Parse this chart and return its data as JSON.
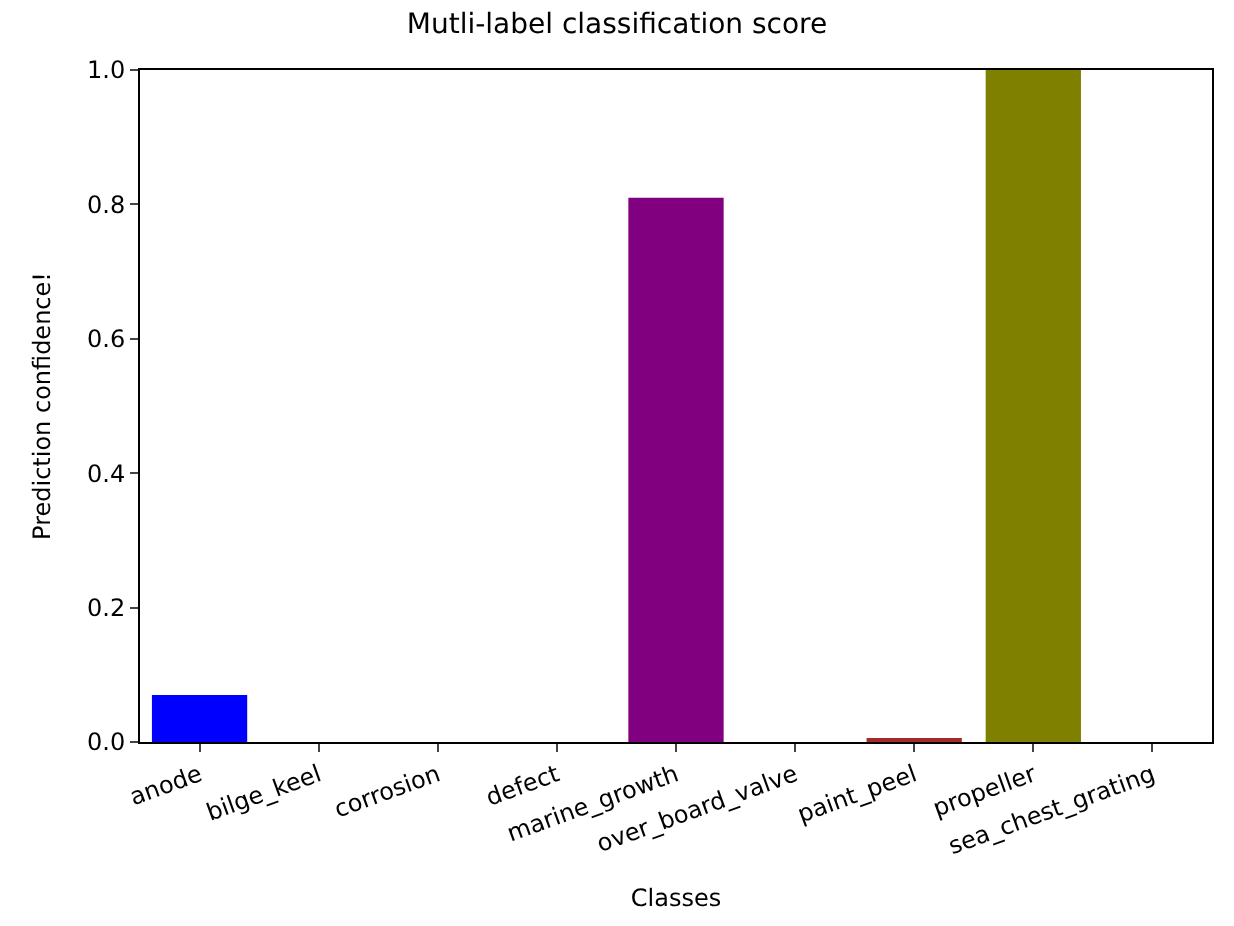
{
  "chart_data": {
    "type": "bar",
    "title": "Mutli-label classification score",
    "xlabel": "Classes",
    "ylabel": "Prediction confidence!",
    "categories": [
      "anode",
      "bilge_keel",
      "corrosion",
      "defect",
      "marine_growth",
      "over_board_valve",
      "paint_peel",
      "propeller",
      "sea_chest_grating"
    ],
    "values": [
      0.07,
      0,
      0,
      0,
      0.81,
      0,
      0.003,
      1.0,
      0
    ],
    "colors": [
      "#0000ff",
      "#008000",
      "#ff0000",
      "#00bfbf",
      "#800080",
      "#bfbf00",
      "#a52a2a",
      "#808000",
      "#000000"
    ],
    "ylim": [
      0,
      1
    ],
    "yticks": [
      {
        "value": 0,
        "label": "0.0"
      },
      0.2,
      0.4,
      0.6,
      0.8,
      {
        "value": 1,
        "label": "1.0"
      }
    ]
  }
}
